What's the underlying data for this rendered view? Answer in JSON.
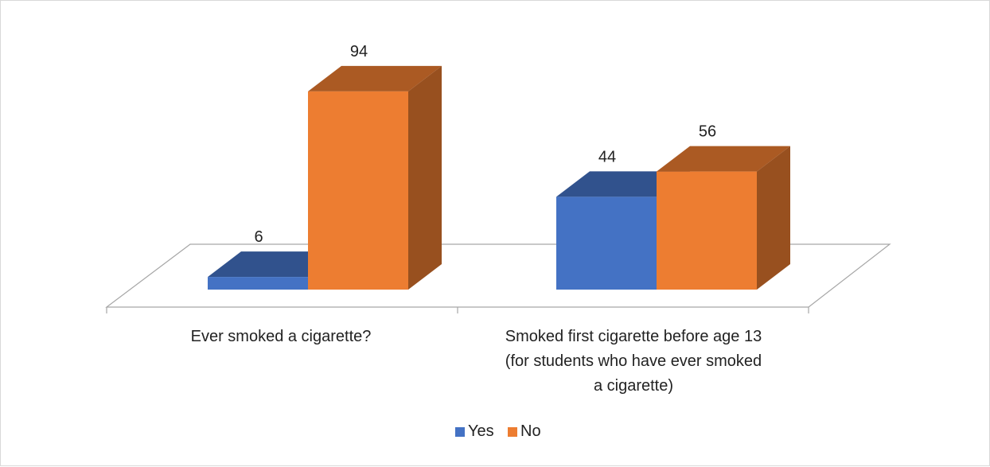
{
  "chart_data": {
    "type": "bar",
    "style": "3d-clustered-column",
    "categories": [
      [
        "Ever smoked a cigarette?"
      ],
      [
        "Smoked first cigarette before age 13",
        "(for students who have ever smoked",
        "a cigarette)"
      ]
    ],
    "series": [
      {
        "name": "Yes",
        "values": [
          6,
          44
        ],
        "color": "#4472C4"
      },
      {
        "name": "No",
        "values": [
          94,
          56
        ],
        "color": "#ED7D31"
      }
    ],
    "ylim": [
      0,
      100
    ],
    "grid": false,
    "legend": "bottom"
  }
}
